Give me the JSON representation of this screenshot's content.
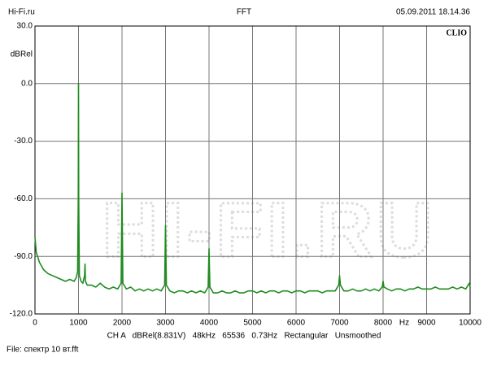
{
  "chart_data": {
    "type": "line",
    "title": "FFT",
    "header_left": "Hi-Fi.ru",
    "header_right": "05.09.2011 18.14.36",
    "brand": "CLIO",
    "watermark": "HI-FI.RU",
    "y_label": "dBRel",
    "x_label": "Hz",
    "info": "CH A   dBRel(8.831V)   48kHz   65536   0.73Hz   Rectangular   Unsmoothed",
    "file": "File: спектр 10 вт.fft",
    "color": "#1e8c1e",
    "grid": true,
    "xlim": [
      0,
      10000
    ],
    "ylim": [
      -120,
      30
    ],
    "xticks": [
      0,
      1000,
      2000,
      3000,
      4000,
      5000,
      6000,
      7000,
      8000,
      9000,
      10000
    ],
    "yticks": [
      {
        "value": 30,
        "label": "30.0"
      },
      {
        "value": 0,
        "label": "0.0"
      },
      {
        "value": -30,
        "label": "-30.0"
      },
      {
        "value": -60,
        "label": "-60.0"
      },
      {
        "value": -90,
        "label": "-90.0"
      },
      {
        "value": -120,
        "label": "-120.0"
      }
    ],
    "x": [
      0,
      30,
      60,
      100,
      150,
      200,
      300,
      400,
      500,
      600,
      700,
      800,
      900,
      950,
      980,
      995,
      1000,
      1005,
      1020,
      1060,
      1100,
      1140,
      1150,
      1160,
      1200,
      1300,
      1400,
      1500,
      1600,
      1700,
      1800,
      1900,
      1980,
      2000,
      2020,
      2100,
      2200,
      2300,
      2400,
      2500,
      2600,
      2700,
      2800,
      2900,
      2980,
      3000,
      3020,
      3100,
      3200,
      3300,
      3400,
      3500,
      3600,
      3700,
      3800,
      3900,
      3980,
      4000,
      4020,
      4100,
      4200,
      4300,
      4400,
      4500,
      4600,
      4700,
      4800,
      4900,
      5000,
      5100,
      5200,
      5300,
      5400,
      5500,
      5600,
      5700,
      5800,
      5900,
      6000,
      6100,
      6200,
      6300,
      6400,
      6500,
      6600,
      6700,
      6800,
      6900,
      6980,
      7000,
      7020,
      7100,
      7200,
      7300,
      7400,
      7500,
      7600,
      7700,
      7800,
      7900,
      7980,
      8000,
      8020,
      8100,
      8200,
      8300,
      8400,
      8500,
      8600,
      8700,
      8800,
      8900,
      9000,
      9100,
      9200,
      9300,
      9400,
      9500,
      9600,
      9700,
      9800,
      9900,
      9980,
      10000
    ],
    "values": [
      -80,
      -88,
      -90,
      -93,
      -95,
      -97,
      -99,
      -100,
      -101,
      -102,
      -103,
      -102,
      -103,
      -101,
      -98,
      -60,
      0,
      -60,
      -100,
      -103,
      -104,
      -100,
      -94,
      -103,
      -105,
      -105,
      -106,
      -104,
      -106,
      -107,
      -106,
      -107,
      -104,
      -57,
      -104,
      -107,
      -106,
      -108,
      -107,
      -108,
      -107,
      -108,
      -107,
      -108,
      -105,
      -74,
      -105,
      -108,
      -109,
      -108,
      -108,
      -109,
      -108,
      -109,
      -108,
      -109,
      -106,
      -86,
      -106,
      -109,
      -109,
      -108,
      -109,
      -109,
      -108,
      -109,
      -109,
      -108,
      -108,
      -109,
      -108,
      -109,
      -108,
      -108,
      -109,
      -108,
      -108,
      -109,
      -108,
      -108,
      -109,
      -108,
      -108,
      -108,
      -109,
      -108,
      -108,
      -108,
      -105,
      -100,
      -105,
      -108,
      -108,
      -107,
      -108,
      -108,
      -107,
      -108,
      -107,
      -108,
      -106,
      -103,
      -106,
      -107,
      -108,
      -107,
      -107,
      -108,
      -107,
      -107,
      -106,
      -107,
      -107,
      -107,
      -106,
      -107,
      -107,
      -107,
      -106,
      -107,
      -106,
      -107,
      -104,
      -106
    ]
  }
}
